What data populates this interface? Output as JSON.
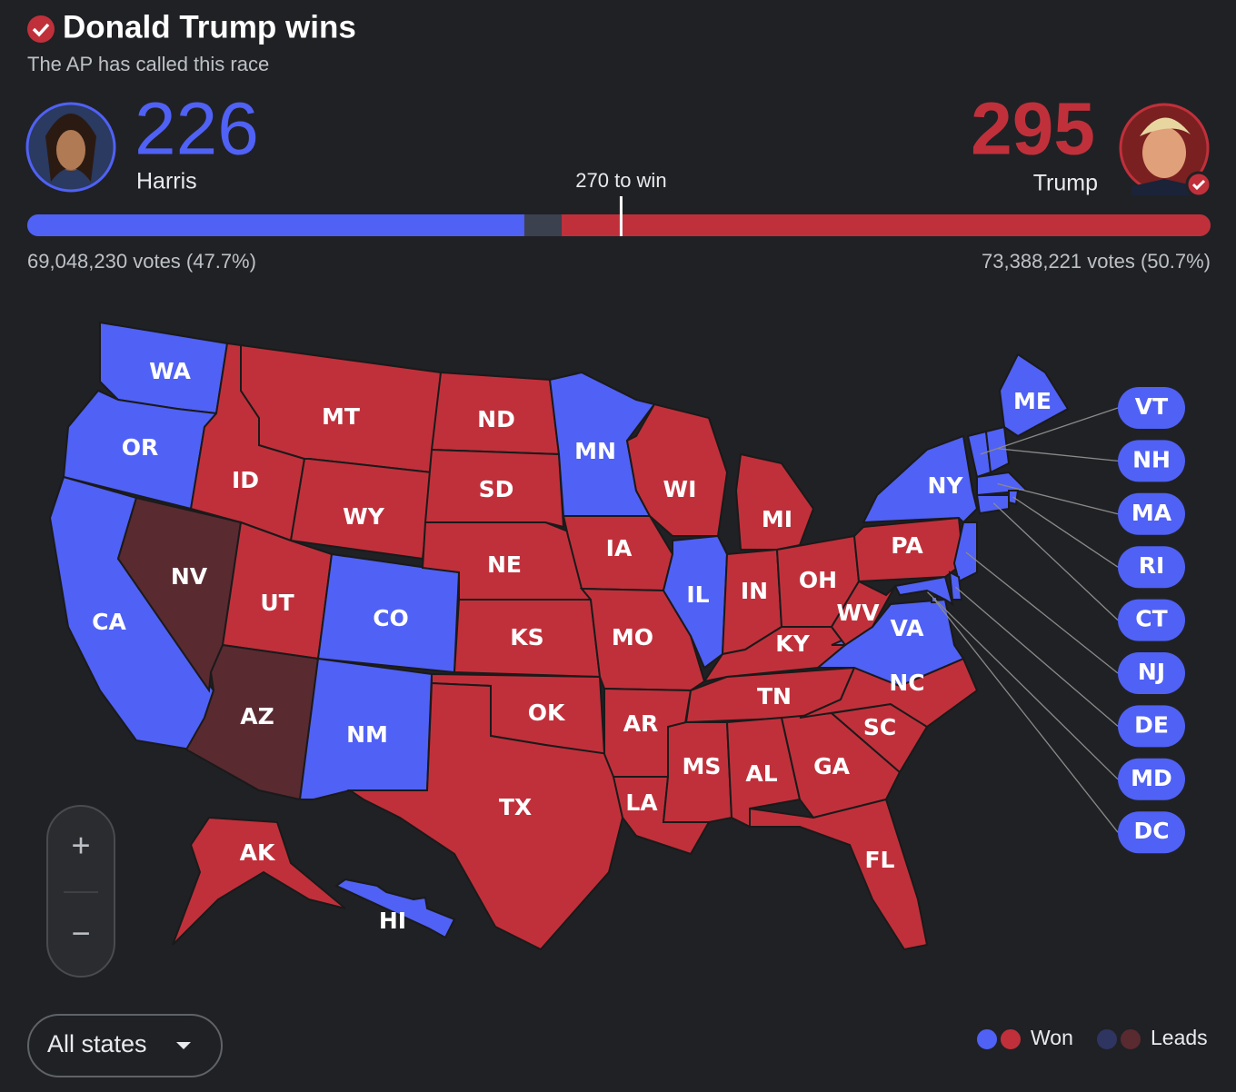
{
  "header": {
    "title": "Donald Trump wins",
    "subtitle": "The AP has called this race"
  },
  "candidates": [
    {
      "name": "Harris",
      "electoral_votes": 226,
      "color": "#5061f5",
      "votes_label": "69,048,230 votes (47.7%)"
    },
    {
      "name": "Trump",
      "electoral_votes": 295,
      "color": "#c0303b",
      "votes_label": "73,388,221 votes (50.7%)"
    }
  ],
  "threshold": {
    "value": 270,
    "label": "270 to win"
  },
  "electoral_bar": {
    "xlim": [
      0,
      538
    ]
  },
  "legend": {
    "won": {
      "label": "Won",
      "colors": [
        "#5061f5",
        "#c0303b"
      ]
    },
    "leads": {
      "label": "Leads",
      "colors": [
        "#2f3561",
        "#5a2a31"
      ]
    }
  },
  "map": {
    "states": [
      {
        "label": "WA",
        "winner": 0,
        "status": "won"
      },
      {
        "label": "OR",
        "winner": 0,
        "status": "won"
      },
      {
        "label": "CA",
        "winner": 0,
        "status": "won"
      },
      {
        "label": "NV",
        "winner": 1,
        "status": "leads"
      },
      {
        "label": "ID",
        "winner": 1,
        "status": "won"
      },
      {
        "label": "MT",
        "winner": 1,
        "status": "won"
      },
      {
        "label": "WY",
        "winner": 1,
        "status": "won"
      },
      {
        "label": "UT",
        "winner": 1,
        "status": "won"
      },
      {
        "label": "AZ",
        "winner": 1,
        "status": "leads"
      },
      {
        "label": "CO",
        "winner": 0,
        "status": "won"
      },
      {
        "label": "NM",
        "winner": 0,
        "status": "won"
      },
      {
        "label": "ND",
        "winner": 1,
        "status": "won"
      },
      {
        "label": "SD",
        "winner": 1,
        "status": "won"
      },
      {
        "label": "NE",
        "winner": 1,
        "status": "won"
      },
      {
        "label": "KS",
        "winner": 1,
        "status": "won"
      },
      {
        "label": "OK",
        "winner": 1,
        "status": "won"
      },
      {
        "label": "TX",
        "winner": 1,
        "status": "won"
      },
      {
        "label": "MN",
        "winner": 0,
        "status": "won"
      },
      {
        "label": "IA",
        "winner": 1,
        "status": "won"
      },
      {
        "label": "MO",
        "winner": 1,
        "status": "won"
      },
      {
        "label": "AR",
        "winner": 1,
        "status": "won"
      },
      {
        "label": "LA",
        "winner": 1,
        "status": "won"
      },
      {
        "label": "WI",
        "winner": 1,
        "status": "won"
      },
      {
        "label": "IL",
        "winner": 0,
        "status": "won"
      },
      {
        "label": "MI",
        "winner": 1,
        "status": "won"
      },
      {
        "label": "IN",
        "winner": 1,
        "status": "won"
      },
      {
        "label": "OH",
        "winner": 1,
        "status": "won"
      },
      {
        "label": "KY",
        "winner": 1,
        "status": "won"
      },
      {
        "label": "TN",
        "winner": 1,
        "status": "won"
      },
      {
        "label": "MS",
        "winner": 1,
        "status": "won"
      },
      {
        "label": "AL",
        "winner": 1,
        "status": "won"
      },
      {
        "label": "GA",
        "winner": 1,
        "status": "won"
      },
      {
        "label": "FL",
        "winner": 1,
        "status": "won"
      },
      {
        "label": "SC",
        "winner": 1,
        "status": "won"
      },
      {
        "label": "NC",
        "winner": 1,
        "status": "won"
      },
      {
        "label": "VA",
        "winner": 0,
        "status": "won"
      },
      {
        "label": "WV",
        "winner": 1,
        "status": "won"
      },
      {
        "label": "PA",
        "winner": 1,
        "status": "won"
      },
      {
        "label": "NY",
        "winner": 0,
        "status": "won"
      },
      {
        "label": "ME",
        "winner": 0,
        "status": "won"
      },
      {
        "label": "AK",
        "winner": 1,
        "status": "won"
      },
      {
        "label": "HI",
        "winner": 0,
        "status": "won"
      },
      {
        "label": "VT",
        "winner": 0,
        "status": "won"
      },
      {
        "label": "NH",
        "winner": 0,
        "status": "won"
      },
      {
        "label": "MA",
        "winner": 0,
        "status": "won"
      },
      {
        "label": "RI",
        "winner": 0,
        "status": "won"
      },
      {
        "label": "CT",
        "winner": 0,
        "status": "won"
      },
      {
        "label": "NJ",
        "winner": 0,
        "status": "won"
      },
      {
        "label": "DE",
        "winner": 0,
        "status": "won"
      },
      {
        "label": "MD",
        "winner": 0,
        "status": "won"
      },
      {
        "label": "DC",
        "winner": 0,
        "status": "won"
      }
    ]
  },
  "zoom": {
    "plus": "+",
    "minus": "−"
  },
  "filter": {
    "label": "All states"
  }
}
